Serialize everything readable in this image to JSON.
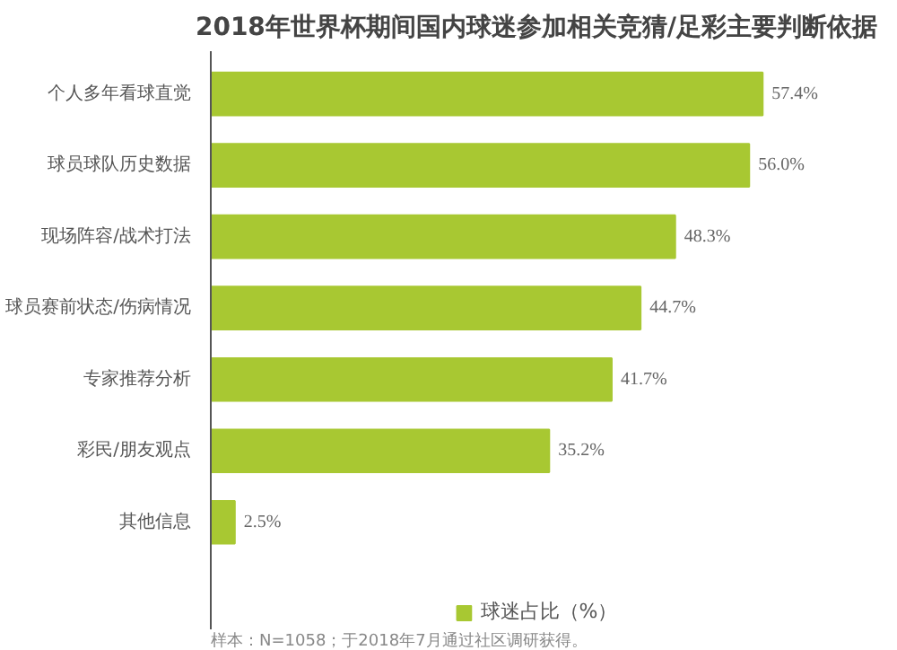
{
  "chart_data": {
    "type": "bar",
    "orientation": "horizontal",
    "title": "2018年世界杯期间国内球迷参加相关竞猜/足彩主要判断依据",
    "categories": [
      "个人多年看球直觉",
      "球员球队历史数据",
      "现场阵容/战术打法",
      "球员赛前状态/伤病情况",
      "专家推荐分析",
      "彩民/朋友观点",
      "其他信息"
    ],
    "series": [
      {
        "name": "球迷占比（%）",
        "color": "#a8c832",
        "values": [
          57.4,
          56.0,
          48.3,
          44.7,
          41.7,
          35.2,
          2.5
        ],
        "value_labels": [
          "57.4%",
          "56.0%",
          "48.3%",
          "44.7%",
          "41.7%",
          "35.2%",
          "2.5%"
        ]
      }
    ],
    "legend": "bottom",
    "grid": false,
    "tick_labels": "y",
    "annotations": [
      "样本：N=1058；于2018年7月通过社区调研获得。"
    ]
  }
}
